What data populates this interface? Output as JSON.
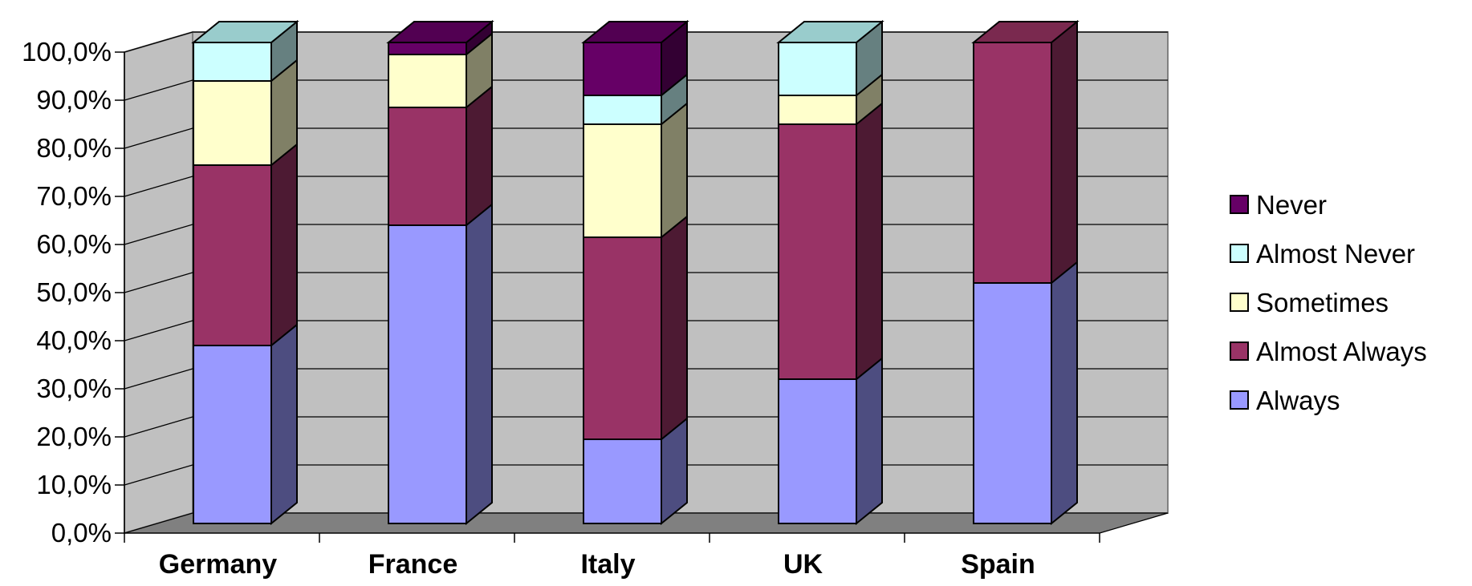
{
  "chart_data": {
    "type": "bar",
    "stacked": true,
    "three_d": true,
    "categories": [
      "Germany",
      "France",
      "Italy",
      "UK",
      "Spain"
    ],
    "series": [
      {
        "name": "Always",
        "values": [
          37.0,
          62.0,
          17.5,
          30.0,
          50.0
        ],
        "color": "#9999FF",
        "side_color": "#4D4D80",
        "top_color": "#B3B3FF"
      },
      {
        "name": "Almost Always",
        "values": [
          37.5,
          24.5,
          42.0,
          53.0,
          50.0
        ],
        "color": "#993366",
        "side_color": "#4D1A33",
        "top_color": "#7A294F"
      },
      {
        "name": "Sometimes",
        "values": [
          17.5,
          11.0,
          23.5,
          6.0,
          0.0
        ],
        "color": "#FFFFCC",
        "side_color": "#808066",
        "top_color": "#CCCCA3"
      },
      {
        "name": "Almost Never",
        "values": [
          8.0,
          0.0,
          6.0,
          11.0,
          0.0
        ],
        "color": "#CCFFFF",
        "side_color": "#668080",
        "top_color": "#99CCCC"
      },
      {
        "name": "Never",
        "values": [
          0.0,
          2.5,
          11.0,
          0.0,
          0.0
        ],
        "color": "#660066",
        "side_color": "#330033",
        "top_color": "#520052"
      }
    ],
    "y_ticks": [
      "0,0%",
      "10,0%",
      "20,0%",
      "30,0%",
      "40,0%",
      "50,0%",
      "60,0%",
      "70,0%",
      "80,0%",
      "90,0%",
      "100,0%"
    ],
    "ylim": [
      0,
      100
    ],
    "grid": true,
    "legend_position": "right",
    "legend_order": [
      "Never",
      "Almost Never",
      "Sometimes",
      "Almost Always",
      "Always"
    ],
    "title": "",
    "xlabel": "",
    "ylabel": "",
    "colors": {
      "back_wall": "#C0C0C0",
      "floor": "#808080",
      "grid": "#000000"
    }
  }
}
